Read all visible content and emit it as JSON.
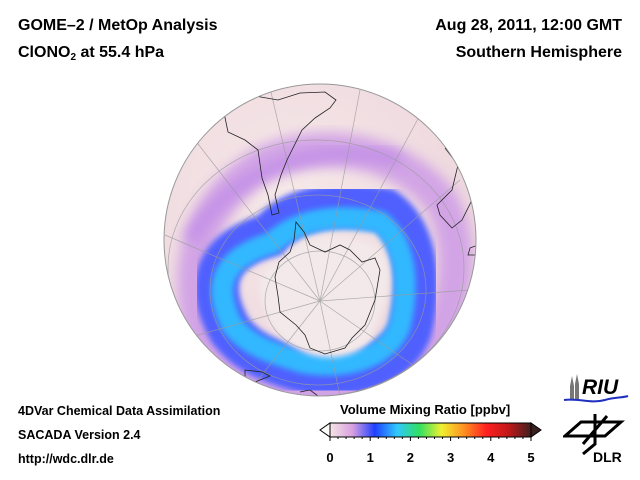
{
  "header": {
    "title": "GOME–2 / MetOp Analysis",
    "species_prefix": "ClONO",
    "species_subscript": "2",
    "species_suffix": " at 55.4 hPa",
    "datetime": "Aug 28, 2011, 12:00 GMT",
    "hemisphere": "Southern Hemisphere"
  },
  "footer": {
    "line1": "4DVar Chemical Data Assimilation",
    "line2": "SACADA Version 2.4",
    "line3": "http://wdc.dlr.de"
  },
  "colorbar": {
    "label": "Volume Mixing Ratio [ppbv]",
    "min": 0,
    "max": 5,
    "ticks": [
      "0",
      "1",
      "2",
      "3",
      "4",
      "5"
    ],
    "colors": [
      "#f4e6e6",
      "#d9a0e0",
      "#2040ff",
      "#30c8ff",
      "#30e060",
      "#f0f030",
      "#ff9020",
      "#ff2020",
      "#c01818",
      "#402020"
    ]
  },
  "logos": {
    "riu": "RIU",
    "dlr": "DLR"
  }
}
